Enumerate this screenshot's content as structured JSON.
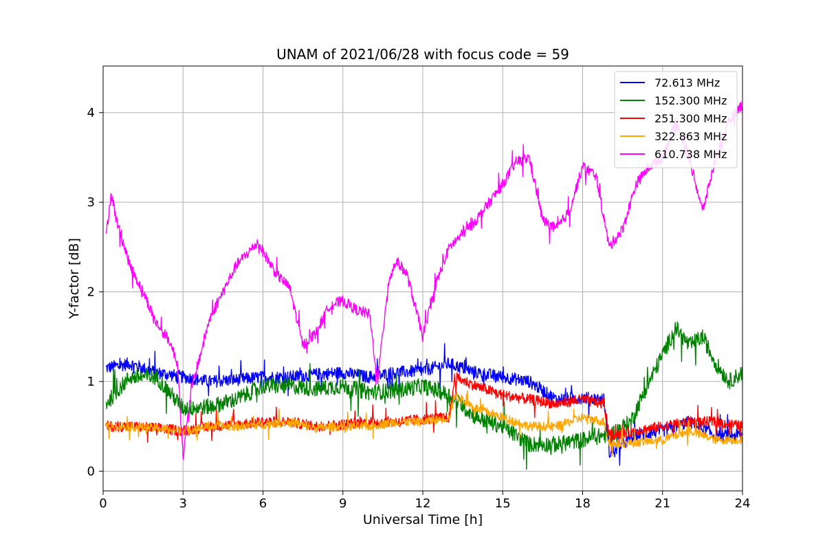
{
  "chart_data": {
    "type": "line",
    "title": "UNAM of 2021/06/28 with focus code = 59",
    "xlabel": "Universal Time [h]",
    "ylabel": "Y-factor [dB]",
    "xlim": [
      0,
      24
    ],
    "ylim": [
      -0.22,
      4.52
    ],
    "xticks": [
      0,
      3,
      6,
      9,
      12,
      15,
      18,
      21,
      24
    ],
    "yticks": [
      0,
      1,
      2,
      3,
      4
    ],
    "grid": true,
    "legend_position": "top-right",
    "noise_note": "signals are highly noisy; values below are approximate central trend per hour",
    "series": [
      {
        "name": " 72.613 MHz",
        "color": "#0000ff",
        "noise": 0.07,
        "x": [
          0.1,
          1,
          2,
          3,
          4,
          5,
          6,
          7,
          8,
          9,
          10,
          11,
          12,
          13,
          13.5,
          14,
          15,
          16,
          17,
          18,
          18.8,
          19,
          20,
          21,
          22,
          23,
          24
        ],
        "y": [
          1.15,
          1.2,
          1.1,
          1.05,
          1.0,
          1.02,
          1.05,
          1.05,
          1.08,
          1.1,
          1.05,
          1.1,
          1.12,
          1.2,
          1.15,
          1.1,
          1.05,
          1.0,
          0.8,
          0.82,
          0.8,
          0.2,
          0.4,
          0.45,
          0.55,
          0.4,
          0.4
        ]
      },
      {
        "name": "152.300 MHz",
        "color": "#008000",
        "noise": 0.09,
        "x": [
          0.1,
          1,
          2,
          3,
          4,
          5,
          6,
          7,
          8,
          9,
          10,
          11,
          12,
          13,
          14,
          15,
          16,
          17,
          18,
          18.8,
          19,
          19.8,
          20.5,
          21,
          21.5,
          22,
          22.5,
          23,
          23.5,
          24
        ],
        "y": [
          0.75,
          1.05,
          1.05,
          0.7,
          0.72,
          0.8,
          0.95,
          0.95,
          0.92,
          0.95,
          0.88,
          0.9,
          0.95,
          0.85,
          0.6,
          0.5,
          0.3,
          0.3,
          0.35,
          0.4,
          0.4,
          0.55,
          1.0,
          1.3,
          1.6,
          1.4,
          1.5,
          1.2,
          1.0,
          1.1
        ]
      },
      {
        "name": "251.300 MHz",
        "color": "#ff0000",
        "noise": 0.06,
        "x": [
          0.1,
          1,
          2,
          3,
          4,
          5,
          6,
          7,
          8,
          9,
          10,
          11,
          12,
          13,
          13.2,
          14,
          15,
          16,
          17,
          18,
          18.8,
          19,
          20,
          21,
          22,
          23,
          24
        ],
        "y": [
          0.5,
          0.5,
          0.48,
          0.45,
          0.5,
          0.52,
          0.55,
          0.55,
          0.5,
          0.52,
          0.55,
          0.55,
          0.58,
          0.6,
          1.05,
          0.95,
          0.85,
          0.8,
          0.75,
          0.8,
          0.75,
          0.4,
          0.45,
          0.5,
          0.55,
          0.55,
          0.5
        ]
      },
      {
        "name": "322.863 MHz",
        "color": "#ffa500",
        "noise": 0.05,
        "x": [
          0.1,
          1,
          2,
          3,
          4,
          5,
          6,
          7,
          8,
          9,
          10,
          11,
          12,
          13,
          13.2,
          14,
          15,
          16,
          17,
          18,
          18.8,
          19,
          20,
          21,
          22,
          23,
          24
        ],
        "y": [
          0.5,
          0.5,
          0.48,
          0.45,
          0.5,
          0.5,
          0.52,
          0.55,
          0.48,
          0.5,
          0.5,
          0.55,
          0.55,
          0.6,
          0.85,
          0.7,
          0.6,
          0.5,
          0.5,
          0.6,
          0.55,
          0.3,
          0.32,
          0.35,
          0.45,
          0.35,
          0.35
        ]
      },
      {
        "name": "610.738 MHz",
        "color": "#ff00ff",
        "noise": 0.06,
        "x": [
          0.1,
          0.3,
          0.5,
          1,
          1.5,
          2,
          2.5,
          2.8,
          3,
          3.3,
          4,
          5,
          5.8,
          6.5,
          7,
          7.5,
          8,
          8.5,
          9,
          9.5,
          10,
          10.3,
          10.7,
          11,
          11.4,
          12,
          12.5,
          13,
          14,
          15,
          15.5,
          16,
          16.5,
          17,
          17.5,
          18,
          18.5,
          19,
          19.5,
          20,
          20.5,
          21,
          21.5,
          22,
          22.5,
          23,
          23.5,
          24
        ],
        "y": [
          2.6,
          3.1,
          2.8,
          2.3,
          2.0,
          1.65,
          1.45,
          1.2,
          0.15,
          0.9,
          1.7,
          2.3,
          2.55,
          2.2,
          2.05,
          1.4,
          1.55,
          1.85,
          1.9,
          1.8,
          1.75,
          1.0,
          2.1,
          2.35,
          2.2,
          1.5,
          2.1,
          2.5,
          2.8,
          3.2,
          3.45,
          3.5,
          2.8,
          2.7,
          2.9,
          3.4,
          3.3,
          2.5,
          2.7,
          3.2,
          3.4,
          3.5,
          3.9,
          3.5,
          2.9,
          3.5,
          3.9,
          4.1
        ]
      }
    ]
  }
}
